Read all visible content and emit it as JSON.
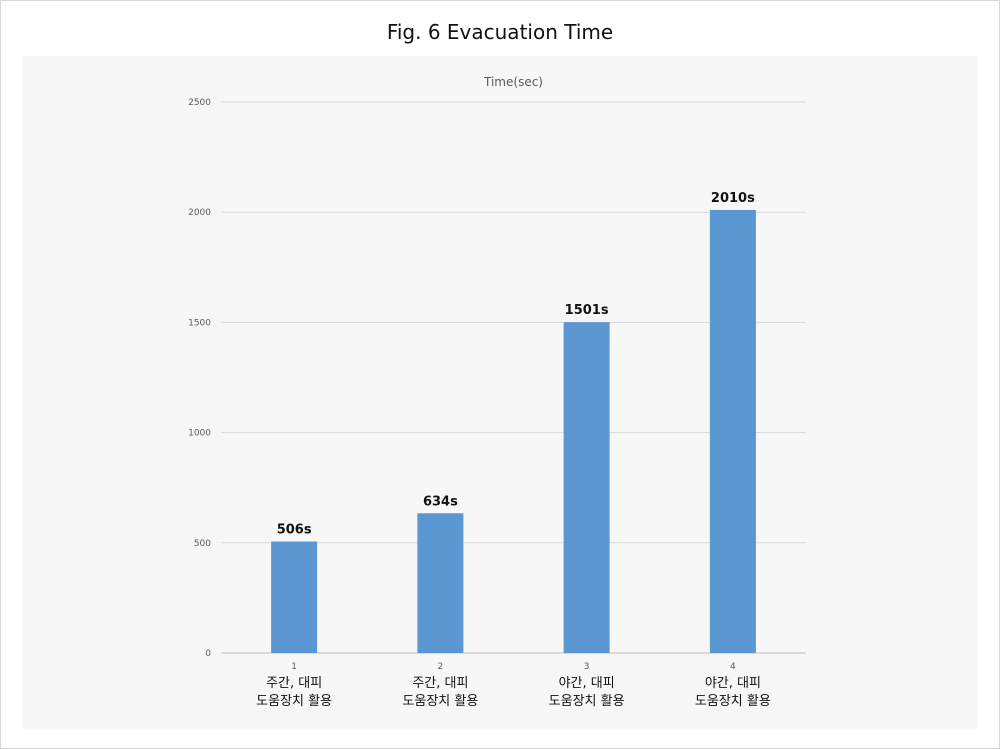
{
  "figure": {
    "title": "Fig. 6 Evacuation Time"
  },
  "colors": {
    "bar": "#5b97d1",
    "grid": "#d9d9d9",
    "panel": "#f7f7f7"
  },
  "chart_data": {
    "type": "bar",
    "title": "Time(sec)",
    "xlabel": "",
    "ylabel": "",
    "ylim": [
      0,
      2500
    ],
    "yticks": [
      0,
      500,
      1000,
      1500,
      2000,
      2500
    ],
    "grid": true,
    "legend": "none",
    "categories": [
      {
        "number": "1",
        "line1": "주간, 대피",
        "line2": "도움장치 활용"
      },
      {
        "number": "2",
        "line1": "주간, 대피",
        "line2": "도움장치 활용"
      },
      {
        "number": "3",
        "line1": "야간, 대피",
        "line2": "도움장치 활용"
      },
      {
        "number": "4",
        "line1": "야간, 대피",
        "line2": "도움장치 활용"
      }
    ],
    "values": [
      506,
      634,
      1501,
      2010
    ],
    "data_labels": [
      "506s",
      "634s",
      "1501s",
      "2010s"
    ]
  }
}
